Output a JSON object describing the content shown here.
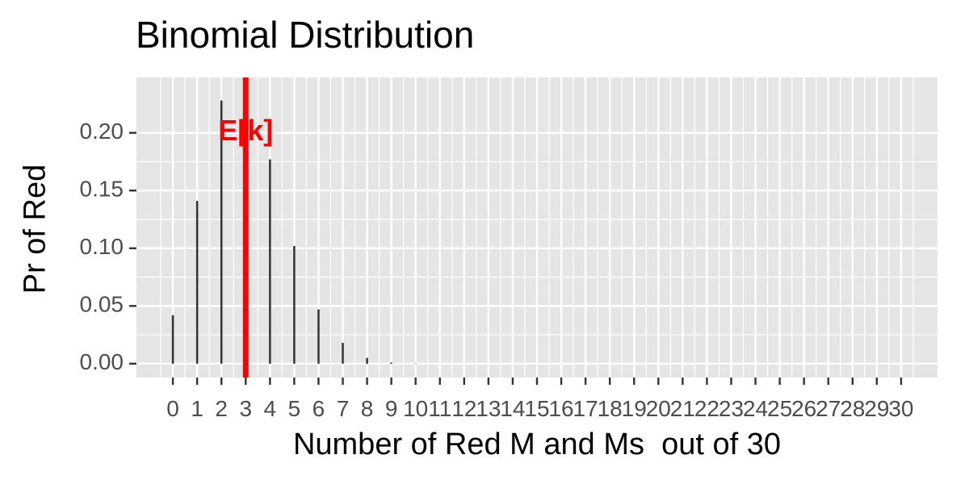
{
  "chart_data": {
    "type": "bar",
    "title": "Binomial Distribution",
    "xlabel": "Number of Red M and Ms  out of 30",
    "ylabel": "Pr of Red",
    "x": [
      0,
      1,
      2,
      3,
      4,
      5,
      6,
      7,
      8,
      9,
      10,
      11,
      12,
      13,
      14,
      15,
      16,
      17,
      18,
      19,
      20,
      21,
      22,
      23,
      24,
      25,
      26,
      27,
      28,
      29,
      30
    ],
    "x_tick_labels": [
      "0",
      "1",
      "2",
      "3",
      "4",
      "5",
      "6",
      "7",
      "8",
      "9",
      "10",
      "11",
      "12",
      "13",
      "14",
      "15",
      "16",
      "17",
      "18",
      "19",
      "20",
      "21",
      "22",
      "23",
      "24",
      "25",
      "26",
      "27",
      "28",
      "29",
      "30"
    ],
    "values": [
      0.042,
      0.141,
      0.228,
      0.236,
      0.177,
      0.102,
      0.047,
      0.018,
      0.005,
      0.001,
      0.0003,
      0,
      0,
      0,
      0,
      0,
      0,
      0,
      0,
      0,
      0,
      0,
      0,
      0,
      0,
      0,
      0,
      0,
      0,
      0,
      0
    ],
    "xlim": [
      -1.5,
      31.5
    ],
    "ylim": [
      -0.012,
      0.248
    ],
    "y_ticks": [
      0,
      0.05,
      0.1,
      0.15,
      0.2
    ],
    "y_tick_labels": [
      "0.00",
      "0.05",
      "0.10",
      "0.15",
      "0.20"
    ],
    "grid": true,
    "vline": {
      "x": 3,
      "label": "E[k]",
      "label_y": 0.2
    },
    "colors": {
      "bars": "#333333",
      "vline": "#ff0000",
      "annotation": "#ff0000",
      "panel": "#e5e5e5",
      "grid": "#ffffff"
    }
  }
}
